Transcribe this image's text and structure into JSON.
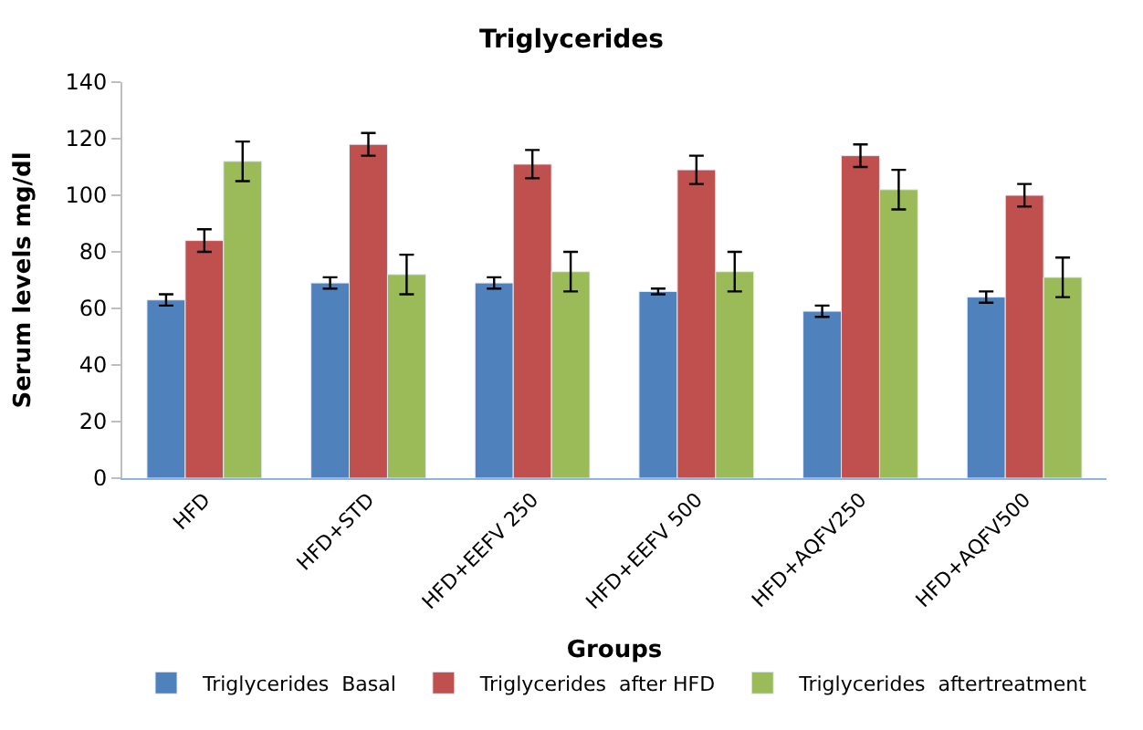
{
  "chart_data": {
    "type": "bar",
    "title": "Triglycerides",
    "xlabel": "Groups",
    "ylabel": "Serum levels mg/dl",
    "categories": [
      "HFD",
      "HFD+STD",
      "HFD+EEFV 250",
      "HFD+EEFV 500",
      "HFD+AQFV250",
      "HFD+AQFV500"
    ],
    "series": [
      {
        "name": "Triglycerides  Basal",
        "color": "#4f81bd",
        "values": [
          63,
          69,
          69,
          66,
          59,
          64
        ],
        "errors": [
          2,
          2,
          2,
          1,
          2,
          2
        ]
      },
      {
        "name": "Triglycerides  after HFD",
        "color": "#c0504d",
        "values": [
          84,
          118,
          111,
          109,
          114,
          100
        ],
        "errors": [
          4,
          4,
          5,
          5,
          4,
          4
        ]
      },
      {
        "name": "Triglycerides  aftertreatment",
        "color": "#9bbb59",
        "values": [
          112,
          72,
          73,
          73,
          102,
          71
        ],
        "errors": [
          7,
          7,
          7,
          7,
          7,
          7
        ]
      }
    ],
    "ylim": [
      0,
      140
    ],
    "yticks": [
      0,
      20,
      40,
      60,
      80,
      100,
      120,
      140
    ],
    "legend": "bottom"
  }
}
